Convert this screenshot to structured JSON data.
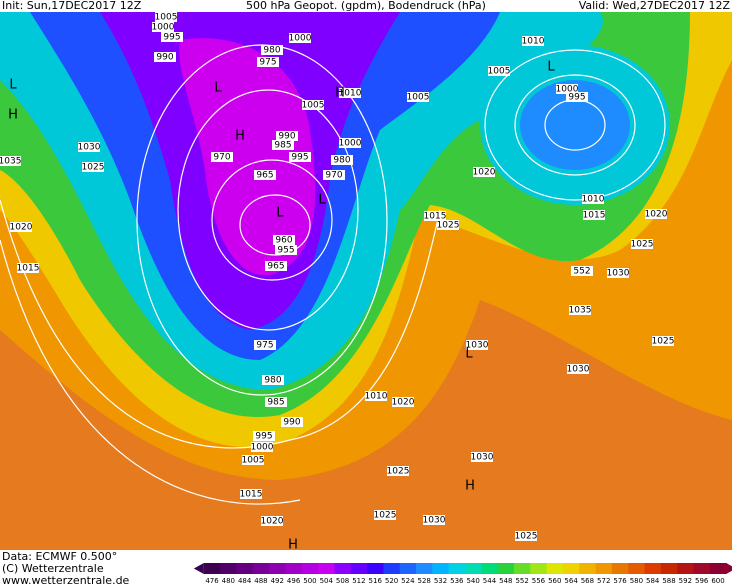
{
  "header": {
    "init": "Init: Sun,17DEC2017 12Z",
    "title": "500 hPa Geopot. (gpdm), Bodendruck (hPa)",
    "valid": "Valid: Wed,27DEC2017 12Z"
  },
  "isobar_labels": [
    "1005",
    "1000",
    "995",
    "990",
    "980",
    "975",
    "1000",
    "1010",
    "1005",
    "1005",
    "1000",
    "995",
    "1010",
    "1005",
    "1000",
    "990",
    "985",
    "995",
    "980",
    "970",
    "970",
    "965",
    "960",
    "955",
    "965",
    "975",
    "980",
    "985",
    "990",
    "995",
    "1000",
    "1005",
    "1015",
    "1020",
    "1030",
    "1025",
    "1035",
    "1020",
    "1015",
    "1020",
    "1015",
    "1025",
    "1010",
    "1015",
    "1020",
    "1025",
    "552",
    "1030",
    "1035",
    "1025",
    "1030",
    "1030",
    "1010",
    "1020",
    "1030",
    "1025",
    "1025",
    "1030",
    "1025"
  ],
  "pressure_centers": [
    "L",
    "L",
    "L",
    "H",
    "H",
    "H",
    "L",
    "L",
    "H",
    "H",
    "L"
  ],
  "legend": {
    "levels": [
      476,
      480,
      484,
      488,
      492,
      496,
      500,
      504,
      508,
      512,
      516,
      520,
      524,
      528,
      532,
      536,
      540,
      544,
      548,
      552,
      556,
      560,
      564,
      568,
      572,
      576,
      580,
      584,
      588,
      592,
      596,
      600
    ],
    "colors": [
      "#3c0050",
      "#500068",
      "#640080",
      "#780098",
      "#8c00b0",
      "#a000c8",
      "#b400e0",
      "#c800f0",
      "#8c00ff",
      "#6400ff",
      "#3c00ff",
      "#1e3cff",
      "#1e64ff",
      "#1e8cff",
      "#00b4ff",
      "#00d2e6",
      "#00dcb4",
      "#00dc78",
      "#28d23c",
      "#64dc28",
      "#a0e614",
      "#dce600",
      "#f0d200",
      "#f0b400",
      "#f09600",
      "#e67800",
      "#e65a00",
      "#dc3c00",
      "#c82800",
      "#b41414",
      "#a00a28",
      "#8c0032"
    ]
  },
  "footer": {
    "data": "Data: ECMWF   0.500°",
    "copyright": "(C) Wetterzentrale",
    "url": "www.wetterzentrale.de"
  }
}
